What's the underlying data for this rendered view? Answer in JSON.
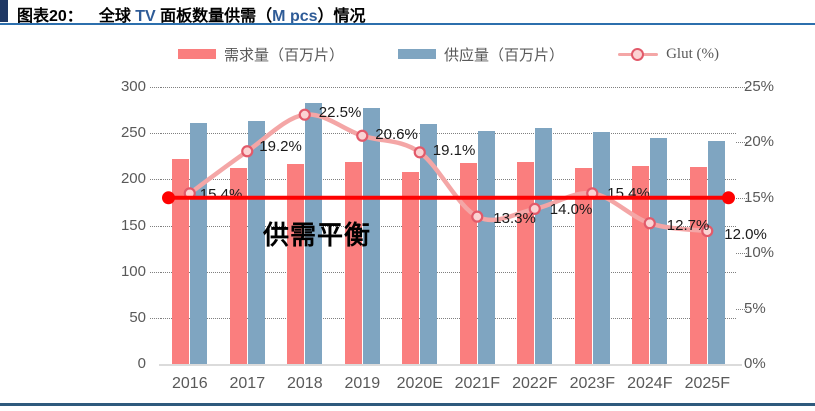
{
  "header": {
    "figure_label": "图表20：",
    "title_seg1": "全球 ",
    "title_seg2": "TV",
    "title_seg3": " 面板数量供需（",
    "title_seg4": "M pcs",
    "title_seg5": "）情况",
    "accent_color": "#2E5B97"
  },
  "legend": {
    "demand": "需求量（百万片）",
    "supply": "供应量（百万片）",
    "glut": "Glut (%)"
  },
  "chart_data": {
    "type": "combo-bar-line",
    "categories": [
      "2016",
      "2017",
      "2018",
      "2019",
      "2020E",
      "2021F",
      "2022F",
      "2023F",
      "2024F",
      "2025F"
    ],
    "series": [
      {
        "name": "需求量（百万片）",
        "type": "bar",
        "color": "#FA7E7E",
        "values": [
          222,
          212,
          217,
          219,
          208,
          218,
          219,
          212,
          214,
          213
        ]
      },
      {
        "name": "供应量（百万片）",
        "type": "bar",
        "color": "#7FA5C1",
        "values": [
          261,
          263,
          283,
          277,
          260,
          252,
          256,
          251,
          245,
          242
        ]
      },
      {
        "name": "Glut (%)",
        "type": "line",
        "yaxis": "right",
        "color": "#F4A6A6",
        "marker_fill": "#FBD3D3",
        "marker_stroke": "#E25A6A",
        "values": [
          15.4,
          19.2,
          22.5,
          20.6,
          19.1,
          13.3,
          14.0,
          15.4,
          12.7,
          12.0
        ],
        "labels": [
          "15.4%",
          "19.2%",
          "22.5%",
          "20.6%",
          "19.1%",
          "13.3%",
          "14.0%",
          "15.4%",
          "12.7%",
          "12.0%"
        ]
      }
    ],
    "left_axis": {
      "min": 0,
      "max": 300,
      "ticks": [
        "300",
        "250",
        "200",
        "150",
        "100",
        "50",
        "0"
      ]
    },
    "right_axis": {
      "min": 0,
      "max": 25,
      "ticks": [
        "25%",
        "20%",
        "15%",
        "10%",
        "5%",
        "0%"
      ]
    },
    "gridlines": "dotted-horizontal",
    "legend_position": "top",
    "balance_line": {
      "value_pct": 15,
      "color": "#FE0101",
      "label": "供需平衡"
    }
  }
}
